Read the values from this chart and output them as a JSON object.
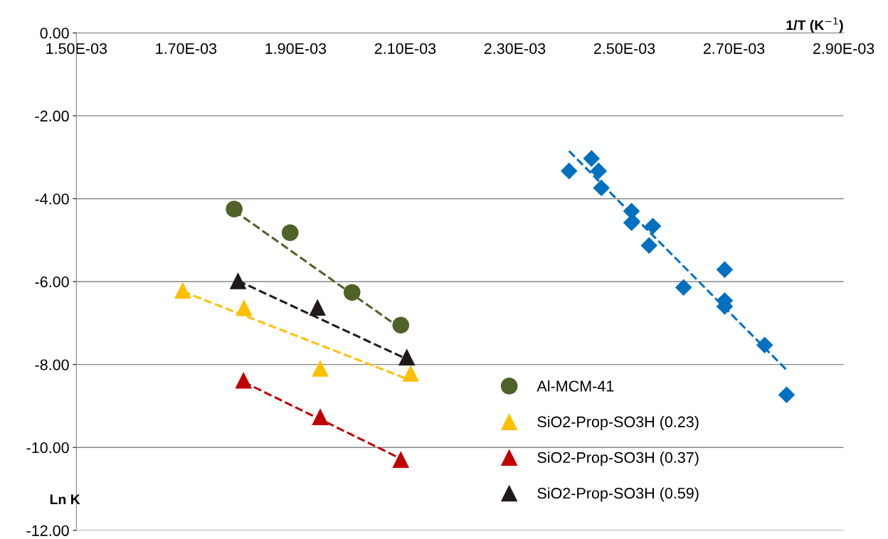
{
  "chart_data": {
    "type": "scatter",
    "xlabel": "1/T (K$^{−1}$)",
    "ylabel": "Ln K",
    "xlim": [
      0.0015,
      0.0029
    ],
    "ylim": [
      -12,
      0
    ],
    "xticks": [
      {
        "value": 0.0015,
        "label": "1.50E-03"
      },
      {
        "value": 0.0017,
        "label": "1.70E-03"
      },
      {
        "value": 0.0019,
        "label": "1.90E-03"
      },
      {
        "value": 0.0021,
        "label": "2.10E-03"
      },
      {
        "value": 0.0023,
        "label": "2.30E-03"
      },
      {
        "value": 0.0025,
        "label": "2.50E-03"
      },
      {
        "value": 0.0027,
        "label": "2.70E-03"
      },
      {
        "value": 0.0029,
        "label": "2.90E-03"
      }
    ],
    "yticks": [
      {
        "value": 0,
        "label": "0.00"
      },
      {
        "value": -2,
        "label": "-2.00"
      },
      {
        "value": -4,
        "label": "-4.00"
      },
      {
        "value": -6,
        "label": "-6.00"
      },
      {
        "value": -8,
        "label": "-8.00"
      },
      {
        "value": -10,
        "label": "-10.00"
      },
      {
        "value": -12,
        "label": "-12.00"
      }
    ],
    "grid": "y",
    "legend": "lower right",
    "series": [
      {
        "name": "Al-MCM-41",
        "color": "#4f6228",
        "marker": "circle",
        "x": [
          0.001788,
          0.00189,
          0.002003,
          0.002092
        ],
        "values": [
          -4.25,
          -4.82,
          -6.26,
          -7.05
        ]
      },
      {
        "name": "SiO2-Prop-SO3H (0.23)",
        "color": "#ffc000",
        "marker": "triangle",
        "x": [
          0.001694,
          0.001806,
          0.001945,
          0.00211
        ],
        "values": [
          -6.21,
          -6.63,
          -8.09,
          -8.21
        ]
      },
      {
        "name": "SiO2-Prop-SO3H (0.37)",
        "color": "#c00000",
        "marker": "triangle",
        "x": [
          0.001805,
          0.001945,
          0.002092
        ],
        "values": [
          -8.38,
          -9.26,
          -10.29
        ]
      },
      {
        "name": "SiO2-Prop-SO3H (0.59)",
        "color": "#1f1a17",
        "marker": "triangle",
        "x": [
          0.001795,
          0.00194,
          0.002103
        ],
        "values": [
          -5.98,
          -6.62,
          -7.82
        ]
      },
      {
        "color": "#0070c0",
        "marker": "diamond",
        "x": [
          0.002399,
          0.00244,
          0.002453,
          0.002458,
          0.002513,
          0.002513,
          0.002552,
          0.002545,
          0.002608,
          0.002683,
          0.002683,
          0.002683,
          0.002756,
          0.002796
        ],
        "values": [
          -3.33,
          -3.03,
          -3.33,
          -3.74,
          -4.3,
          -4.58,
          -4.66,
          -5.13,
          -6.14,
          -5.71,
          -6.46,
          -6.6,
          -7.53,
          -8.73
        ]
      },
      {
        "type": "line",
        "color": "#4f6228",
        "line_style": "dashed",
        "marker": "none",
        "x": [
          0.001788,
          0.002092
        ],
        "values": [
          -4.29,
          -7.13
        ]
      },
      {
        "type": "line",
        "color": "#ffc000",
        "line_style": "dashed",
        "marker": "none",
        "x": [
          0.001694,
          0.00211
        ],
        "values": [
          -6.24,
          -8.38
        ]
      },
      {
        "type": "line",
        "color": "#c00000",
        "line_style": "dashed",
        "marker": "none",
        "x": [
          0.001805,
          0.002092
        ],
        "values": [
          -8.42,
          -10.27
        ]
      },
      {
        "type": "line",
        "color": "#1f1a17",
        "line_style": "dashed",
        "marker": "none",
        "x": [
          0.001795,
          0.002103
        ],
        "values": [
          -5.98,
          -7.87
        ]
      },
      {
        "type": "line",
        "color": "#0070c0",
        "line_style": "dashed",
        "marker": "none",
        "x": [
          0.002399,
          0.002796
        ],
        "values": [
          -2.85,
          -8.13
        ]
      }
    ]
  }
}
